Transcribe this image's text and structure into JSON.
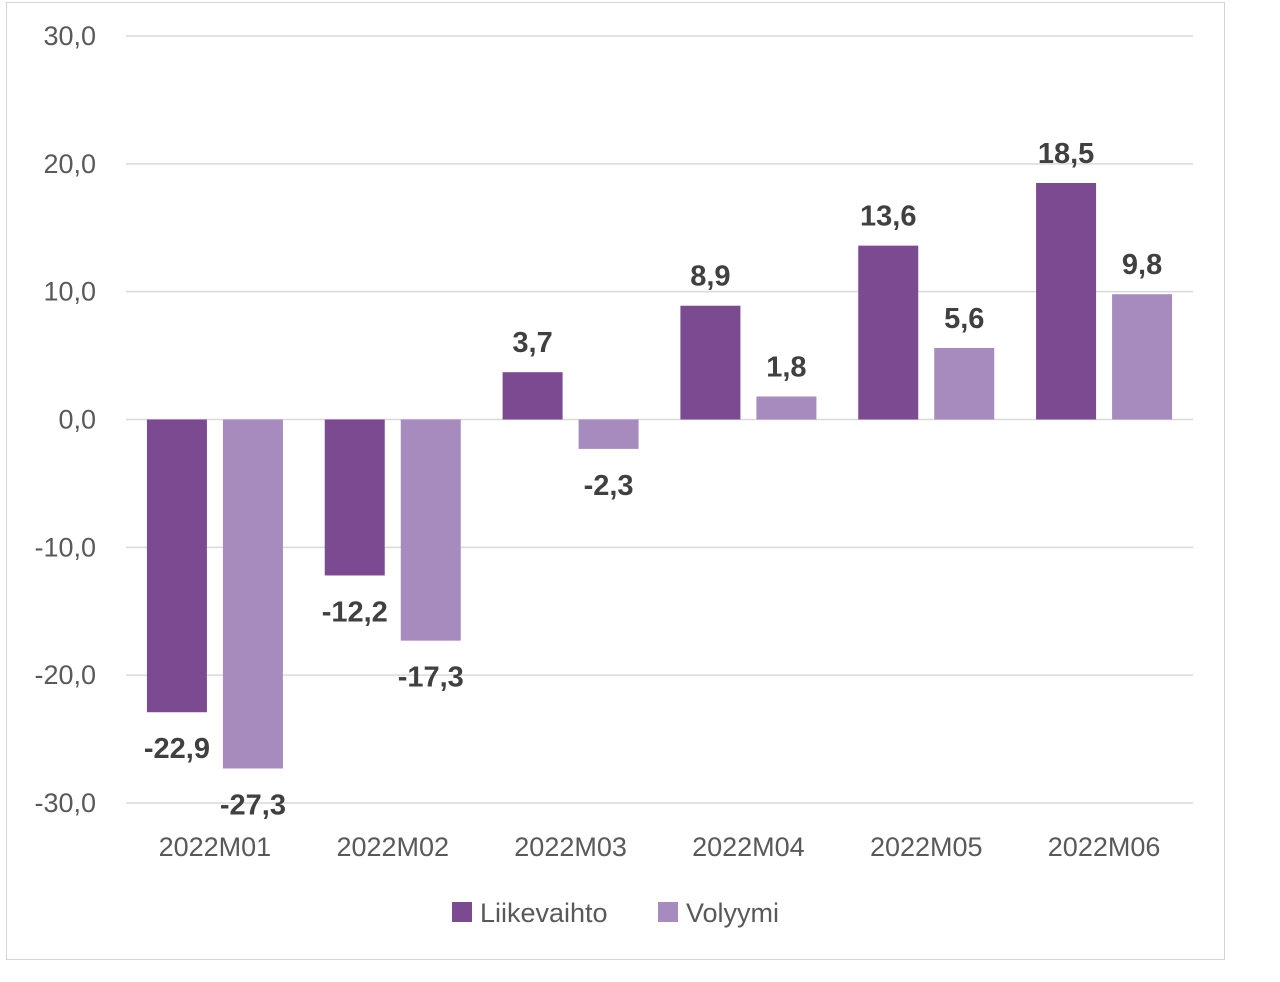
{
  "chart_data": {
    "type": "bar",
    "categories": [
      "2022M01",
      "2022M02",
      "2022M03",
      "2022M04",
      "2022M05",
      "2022M06"
    ],
    "series": [
      {
        "name": "Liikevaihto",
        "color": "#7b4a91",
        "values": [
          -22.9,
          -12.2,
          3.7,
          8.9,
          13.6,
          18.5
        ],
        "labels": [
          "-22,9",
          "-12,2",
          "3,7",
          "8,9",
          "13,6",
          "18,5"
        ]
      },
      {
        "name": "Volyymi",
        "color": "#a78bbf",
        "values": [
          -27.3,
          -17.3,
          -2.3,
          1.8,
          5.6,
          9.8
        ],
        "labels": [
          "-27,3",
          "-17,3",
          "-2,3",
          "1,8",
          "5,6",
          "9,8"
        ]
      }
    ],
    "ylim": [
      -30,
      30
    ],
    "yticks": [
      30,
      20,
      10,
      0,
      -10,
      -20,
      -30
    ],
    "ytick_labels": [
      "30,0",
      "20,0",
      "10,0",
      "0,0",
      "-10,0",
      "-20,0",
      "-30,0"
    ],
    "grid": true,
    "legend_position": "bottom-center",
    "title": "",
    "xlabel": "",
    "ylabel": ""
  }
}
